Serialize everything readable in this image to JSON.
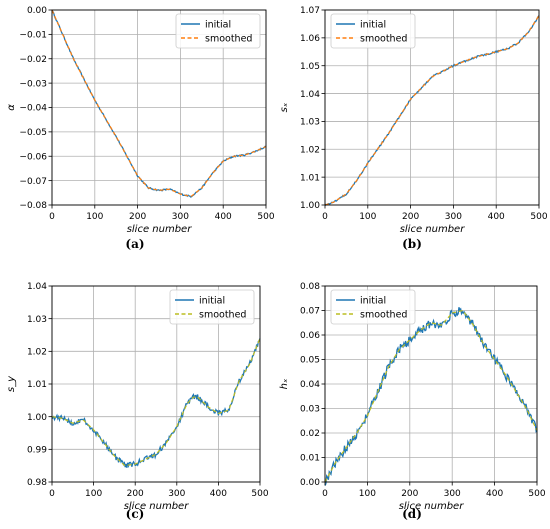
{
  "panels": [
    {
      "caption": "(a)",
      "colors": {
        "initial": "#1f77b4",
        "smoothed": "#ff7f0e"
      },
      "chart_data": {
        "type": "line",
        "xlabel": "slice number",
        "ylabel": "α",
        "xlim": [
          0,
          500
        ],
        "ylim": [
          -0.08,
          0.0
        ],
        "xticks": [
          0,
          100,
          200,
          300,
          400,
          500
        ],
        "yticks": [
          0.0,
          -0.01,
          -0.02,
          -0.03,
          -0.04,
          -0.05,
          -0.06,
          -0.07,
          -0.08
        ],
        "ytick_labels": [
          "0.00",
          "−0.01",
          "−0.02",
          "−0.03",
          "−0.04",
          "−0.05",
          "−0.06",
          "−0.07",
          "−0.08"
        ],
        "grid": true,
        "legend": "top-right",
        "noise": 0.0003,
        "series": [
          {
            "name": "initial",
            "style": "solid",
            "x": [
              0,
              20,
              50,
              100,
              150,
              175,
              200,
              225,
              250,
              275,
              300,
              325,
              350,
              375,
              400,
              425,
              450,
              475,
              500
            ],
            "y": [
              0.0,
              -0.008,
              -0.02,
              -0.037,
              -0.052,
              -0.06,
              -0.068,
              -0.073,
              -0.074,
              -0.0735,
              -0.0755,
              -0.0765,
              -0.073,
              -0.067,
              -0.062,
              -0.06,
              -0.0595,
              -0.058,
              -0.056
            ]
          },
          {
            "name": "smoothed",
            "style": "dashed",
            "x": [
              0,
              20,
              50,
              100,
              150,
              175,
              200,
              225,
              250,
              275,
              300,
              325,
              350,
              375,
              400,
              425,
              450,
              475,
              500
            ],
            "y": [
              0.0,
              -0.008,
              -0.02,
              -0.037,
              -0.052,
              -0.06,
              -0.068,
              -0.073,
              -0.074,
              -0.0735,
              -0.0755,
              -0.0765,
              -0.073,
              -0.067,
              -0.062,
              -0.06,
              -0.0595,
              -0.058,
              -0.056
            ]
          }
        ]
      }
    },
    {
      "caption": "(b)",
      "colors": {
        "initial": "#1f77b4",
        "smoothed": "#ff7f0e"
      },
      "chart_data": {
        "type": "line",
        "xlabel": "slice number",
        "ylabel": "sₓ",
        "xlim": [
          0,
          500
        ],
        "ylim": [
          1.0,
          1.07
        ],
        "xticks": [
          0,
          100,
          200,
          300,
          400,
          500
        ],
        "yticks": [
          1.0,
          1.01,
          1.02,
          1.03,
          1.04,
          1.05,
          1.06,
          1.07
        ],
        "ytick_labels": [
          "1.00",
          "1.01",
          "1.02",
          "1.03",
          "1.04",
          "1.05",
          "1.06",
          "1.07"
        ],
        "grid": true,
        "legend": "top-left",
        "noise": 0.0003,
        "series": [
          {
            "name": "initial",
            "style": "solid",
            "x": [
              0,
              20,
              50,
              75,
              100,
              150,
              200,
              250,
              300,
              350,
              400,
              425,
              450,
              475,
              500
            ],
            "y": [
              1.0,
              1.001,
              1.004,
              1.009,
              1.015,
              1.026,
              1.038,
              1.046,
              1.05,
              1.053,
              1.055,
              1.056,
              1.058,
              1.062,
              1.068
            ]
          },
          {
            "name": "smoothed",
            "style": "dashed",
            "x": [
              0,
              20,
              50,
              75,
              100,
              150,
              200,
              250,
              300,
              350,
              400,
              425,
              450,
              475,
              500
            ],
            "y": [
              1.0,
              1.001,
              1.004,
              1.009,
              1.015,
              1.026,
              1.038,
              1.046,
              1.05,
              1.053,
              1.055,
              1.056,
              1.058,
              1.062,
              1.068
            ]
          }
        ]
      }
    },
    {
      "caption": "(c)",
      "colors": {
        "initial": "#1f77b4",
        "smoothed": "#bcbd22"
      },
      "chart_data": {
        "type": "line",
        "xlabel": "slice number",
        "ylabel": "s_y",
        "xlim": [
          0,
          500
        ],
        "ylim": [
          0.98,
          1.04
        ],
        "xticks": [
          0,
          100,
          200,
          300,
          400,
          500
        ],
        "yticks": [
          0.98,
          0.99,
          1.0,
          1.01,
          1.02,
          1.03,
          1.04
        ],
        "ytick_labels": [
          "0.98",
          "0.99",
          "1.00",
          "1.01",
          "1.02",
          "1.03",
          "1.04"
        ],
        "grid": true,
        "legend": "top-right",
        "noise": 0.0008,
        "series": [
          {
            "name": "initial",
            "style": "solid",
            "x": [
              0,
              25,
              50,
              75,
              100,
              125,
              150,
              175,
              200,
              225,
              250,
              275,
              300,
              325,
              340,
              350,
              375,
              400,
              425,
              450,
              475,
              500
            ],
            "y": [
              1.0,
              0.9995,
              0.998,
              0.999,
              0.996,
              0.992,
              0.988,
              0.985,
              0.9855,
              0.987,
              0.9885,
              0.992,
              0.997,
              1.004,
              1.006,
              1.006,
              1.003,
              1.001,
              1.002,
              1.011,
              1.016,
              1.024
            ]
          },
          {
            "name": "smoothed",
            "style": "dashed",
            "x": [
              0,
              25,
              50,
              75,
              100,
              125,
              150,
              175,
              200,
              225,
              250,
              275,
              300,
              325,
              340,
              350,
              375,
              400,
              425,
              450,
              475,
              500
            ],
            "y": [
              1.0,
              0.9995,
              0.998,
              0.999,
              0.996,
              0.992,
              0.988,
              0.985,
              0.9855,
              0.987,
              0.9885,
              0.992,
              0.997,
              1.004,
              1.006,
              1.006,
              1.003,
              1.001,
              1.002,
              1.011,
              1.016,
              1.024
            ]
          }
        ]
      }
    },
    {
      "caption": "(d)",
      "colors": {
        "initial": "#1f77b4",
        "smoothed": "#bcbd22"
      },
      "chart_data": {
        "type": "line",
        "xlabel": "slice number",
        "ylabel": "hₓ",
        "xlim": [
          0,
          500
        ],
        "ylim": [
          0.0,
          0.08
        ],
        "xticks": [
          0,
          100,
          200,
          300,
          400,
          500
        ],
        "yticks": [
          0.0,
          0.01,
          0.02,
          0.03,
          0.04,
          0.05,
          0.06,
          0.07,
          0.08
        ],
        "ytick_labels": [
          "0.00",
          "0.01",
          "0.02",
          "0.03",
          "0.04",
          "0.05",
          "0.06",
          "0.07",
          "0.08"
        ],
        "grid": true,
        "legend": "top-left",
        "noise": 0.0018,
        "series": [
          {
            "name": "initial",
            "style": "solid",
            "x": [
              0,
              25,
              50,
              75,
              100,
              125,
              150,
              175,
              200,
              225,
              250,
              275,
              300,
              325,
              350,
              375,
              400,
              425,
              450,
              475,
              500
            ],
            "y": [
              0.0,
              0.008,
              0.014,
              0.02,
              0.027,
              0.037,
              0.047,
              0.054,
              0.058,
              0.062,
              0.065,
              0.064,
              0.069,
              0.07,
              0.064,
              0.056,
              0.05,
              0.044,
              0.037,
              0.03,
              0.021
            ]
          },
          {
            "name": "smoothed",
            "style": "dashed",
            "x": [
              0,
              25,
              50,
              75,
              100,
              125,
              150,
              175,
              200,
              225,
              250,
              275,
              300,
              325,
              350,
              375,
              400,
              425,
              450,
              475,
              500
            ],
            "y": [
              0.0,
              0.008,
              0.014,
              0.02,
              0.027,
              0.037,
              0.047,
              0.054,
              0.058,
              0.062,
              0.065,
              0.064,
              0.069,
              0.07,
              0.064,
              0.056,
              0.05,
              0.044,
              0.037,
              0.03,
              0.021
            ]
          }
        ]
      }
    }
  ]
}
